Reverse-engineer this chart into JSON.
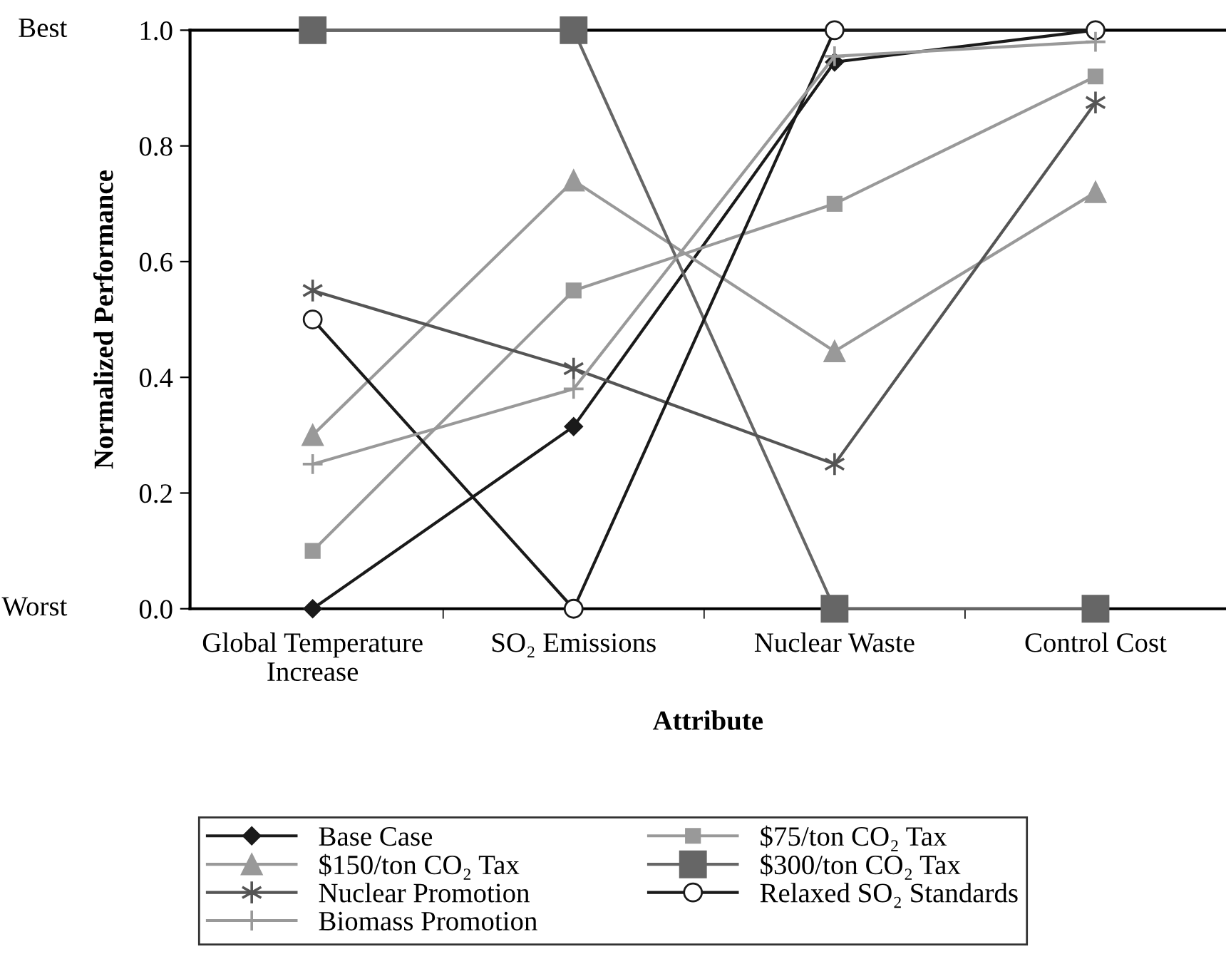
{
  "chart_data": {
    "type": "line",
    "xlabel": "Attribute",
    "ylabel": "Normalized Performance",
    "categories": [
      "Global Temperature\nIncrease",
      "SO₂ Emissions",
      "Nuclear Waste",
      "Control Cost"
    ],
    "ylim": [
      0,
      1
    ],
    "yticks": [
      {
        "value": 0,
        "label": "0.0"
      },
      0.2,
      0.4,
      0.6,
      0.8,
      {
        "value": 1,
        "label": "1.0"
      }
    ],
    "annotations": [
      "Worst",
      "Best"
    ],
    "grid": false,
    "legend": "bottom",
    "line_style": "solid",
    "series": [
      {
        "name": "Base Case",
        "color": "#1a1a1a",
        "marker": "diamond",
        "values": [
          0,
          0.315,
          0.945,
          1.0
        ]
      },
      {
        "name": "$75/ton CO₂ Tax",
        "color": "#999999",
        "marker": "square",
        "values": [
          0.1,
          0.55,
          0.7,
          0.92
        ]
      },
      {
        "name": "$150/ton CO₂ Tax",
        "color": "#999999",
        "marker": "triangle",
        "values": [
          0.3,
          0.74,
          0.445,
          0.72
        ]
      },
      {
        "name": "$300/ton CO₂ Tax",
        "color": "#666666",
        "marker": "square",
        "values": [
          1.0,
          1.0,
          0,
          0
        ]
      },
      {
        "name": "Nuclear Promotion",
        "color": "#555555",
        "marker": "cross",
        "values": [
          0.55,
          0.415,
          0.25,
          0.875
        ]
      },
      {
        "name": "Relaxed SO₂ Standards",
        "color": "#1a1a1a",
        "marker": "open circle",
        "values": [
          0.5,
          0,
          1.0,
          1.0
        ]
      },
      {
        "name": "Biomass Promotion",
        "color": "#999999",
        "marker": "cross",
        "values": [
          0.25,
          0.38,
          0.955,
          0.98
        ]
      }
    ]
  }
}
